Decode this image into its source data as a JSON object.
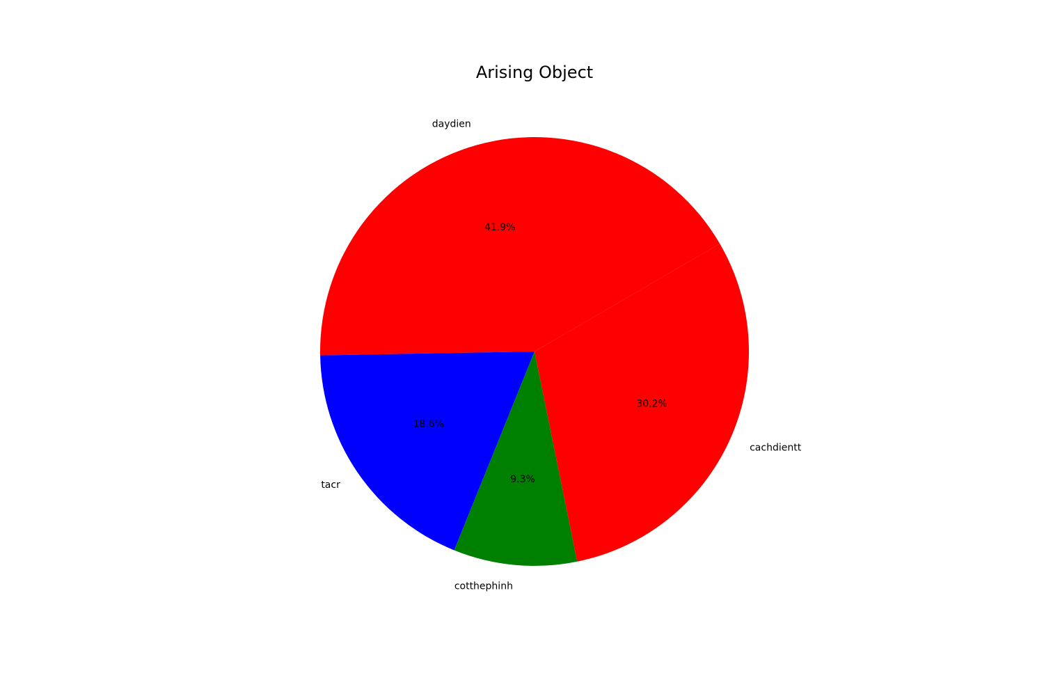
{
  "chart_data": {
    "type": "pie",
    "title": "Arising Object",
    "categories": [
      "daydien",
      "tacr",
      "cotthephinh",
      "cachdientt"
    ],
    "values": [
      41.9,
      18.6,
      9.3,
      30.2
    ],
    "percent_labels": [
      "41.9%",
      "18.6%",
      "9.3%",
      "30.2%"
    ],
    "colors": [
      "#ff0000",
      "#0000ff",
      "#008000",
      "#ff0000"
    ],
    "start_angle_deg": 30.2,
    "direction": "counterclockwise",
    "legend": "none"
  }
}
